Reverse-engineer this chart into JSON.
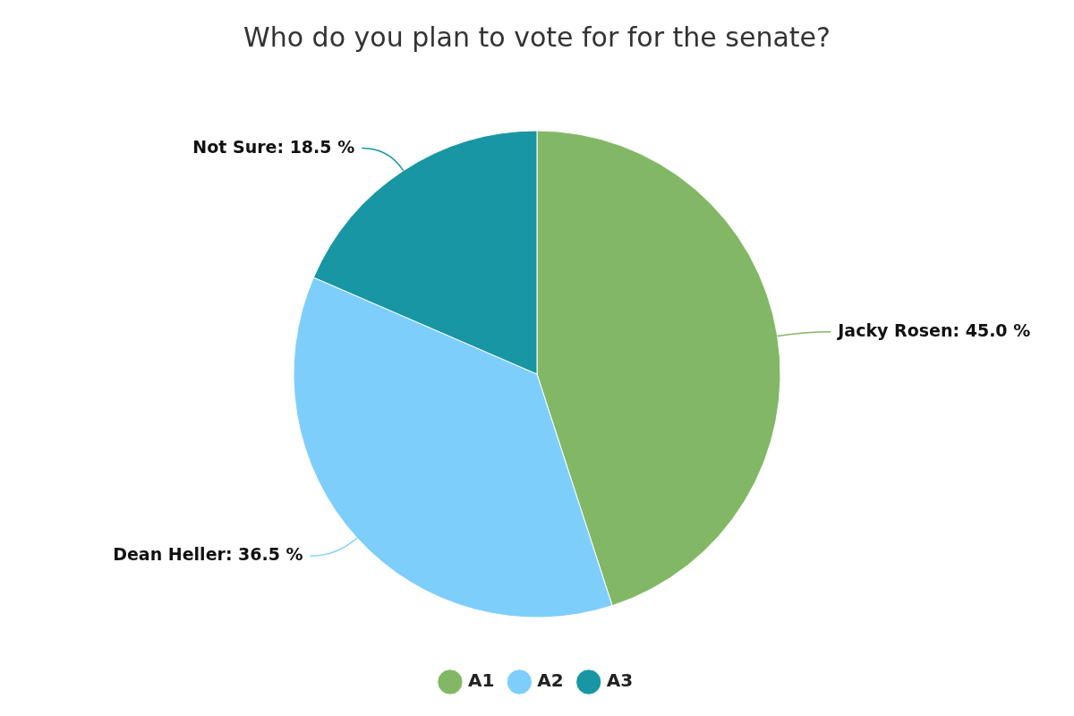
{
  "chart_data": {
    "type": "pie",
    "title": "Who do you plan to vote for for the senate?",
    "categories": [
      "A1",
      "A2",
      "A3"
    ],
    "values": [
      45.0,
      36.5,
      18.5
    ],
    "value_labels": [
      "Jacky Rosen: 45.0 %",
      "Dean Heller: 36.5 %",
      "Not Sure: 18.5 %"
    ],
    "colors": [
      "#82b865",
      "#7ecefc",
      "#1896a4"
    ],
    "legend": "bottom"
  }
}
